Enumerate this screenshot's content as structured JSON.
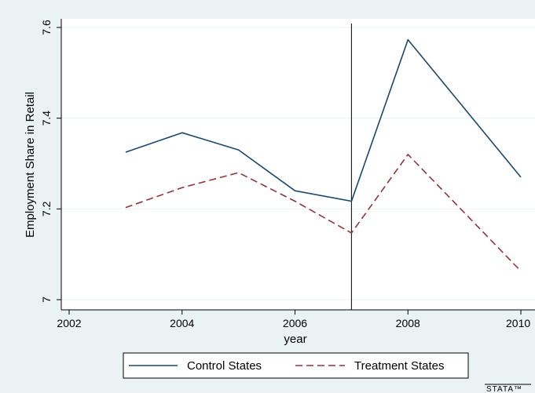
{
  "chart_data": {
    "type": "line",
    "x": [
      2003,
      2004,
      2005,
      2006,
      2007,
      2008,
      2010
    ],
    "series": [
      {
        "name": "Control States",
        "values": [
          7.325,
          7.368,
          7.33,
          7.24,
          7.217,
          7.573,
          7.27
        ],
        "color": "#1a476f",
        "dash": "solid"
      },
      {
        "name": "Treatment States",
        "values": [
          7.203,
          7.247,
          7.28,
          7.217,
          7.147,
          7.32,
          7.063
        ],
        "color": "#90353b",
        "dash": "dashed"
      }
    ],
    "xlabel": "year",
    "ylabel": "Employment Share in Retail",
    "xlim": [
      2002,
      2010
    ],
    "ylim": [
      7.0,
      7.6
    ],
    "xticks": [
      "2002",
      "2004",
      "2006",
      "2008",
      "2010"
    ],
    "yticks": [
      "7",
      "7.2",
      "7.4",
      "7.6"
    ],
    "vline_x": 2007,
    "grid": true,
    "legend_position": "bottom",
    "watermark": "STATA™"
  },
  "colors": {
    "outer_background": "#eaf2f3",
    "plot_background": "#ffffff",
    "gridline": "#eaf2f3",
    "vline": "#000000"
  }
}
